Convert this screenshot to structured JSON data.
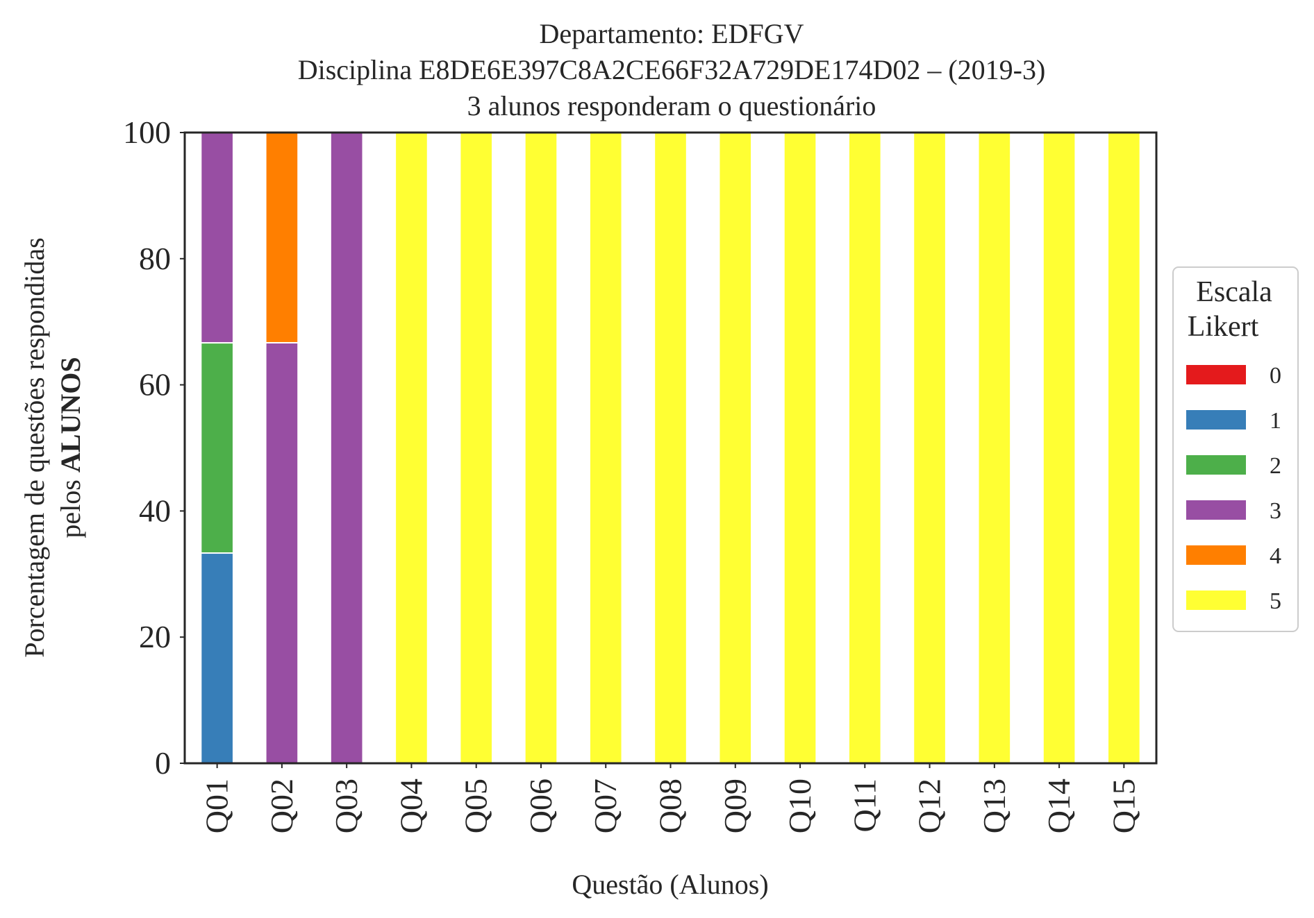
{
  "chart_data": {
    "type": "bar",
    "stacked": true,
    "title_lines": [
      "Departamento: EDFGV",
      "Disciplina E8DE6E397C8A2CE66F32A729DE174D02 – (2019-3)",
      "3 alunos responderam o questionário"
    ],
    "xlabel": "Questão (Alunos)",
    "ylabel_line1": "Porcentagem de questões respondidas",
    "ylabel_line2_prefix": "pelos ",
    "ylabel_line2_bold": "ALUNOS",
    "ylim": [
      0,
      100
    ],
    "yticks": [
      "0",
      "20",
      "40",
      "60",
      "80",
      "100"
    ],
    "grid": false,
    "legend_position": "center-right",
    "legend_title_lines": [
      "Escala",
      "Likert"
    ],
    "categories": [
      "Q01",
      "Q02",
      "Q03",
      "Q04",
      "Q05",
      "Q06",
      "Q07",
      "Q08",
      "Q09",
      "Q10",
      "Q11",
      "Q12",
      "Q13",
      "Q14",
      "Q15"
    ],
    "series": [
      {
        "name": "0",
        "color": "#e41a1c",
        "values": [
          0,
          0,
          0,
          0,
          0,
          0,
          0,
          0,
          0,
          0,
          0,
          0,
          0,
          0,
          0
        ]
      },
      {
        "name": "1",
        "color": "#377eb8",
        "values": [
          33.33,
          0,
          0,
          0,
          0,
          0,
          0,
          0,
          0,
          0,
          0,
          0,
          0,
          0,
          0
        ]
      },
      {
        "name": "2",
        "color": "#4daf4a",
        "values": [
          33.33,
          0,
          0,
          0,
          0,
          0,
          0,
          0,
          0,
          0,
          0,
          0,
          0,
          0,
          0
        ]
      },
      {
        "name": "3",
        "color": "#984ea3",
        "values": [
          33.34,
          66.67,
          100,
          0,
          0,
          0,
          0,
          0,
          0,
          0,
          0,
          0,
          0,
          0,
          0
        ]
      },
      {
        "name": "4",
        "color": "#ff7f00",
        "values": [
          0,
          33.33,
          0,
          0,
          0,
          0,
          0,
          0,
          0,
          0,
          0,
          0,
          0,
          0,
          0
        ]
      },
      {
        "name": "5",
        "color": "#ffff33",
        "values": [
          0,
          0,
          0,
          100,
          100,
          100,
          100,
          100,
          100,
          100,
          100,
          100,
          100,
          100,
          100
        ]
      }
    ]
  }
}
